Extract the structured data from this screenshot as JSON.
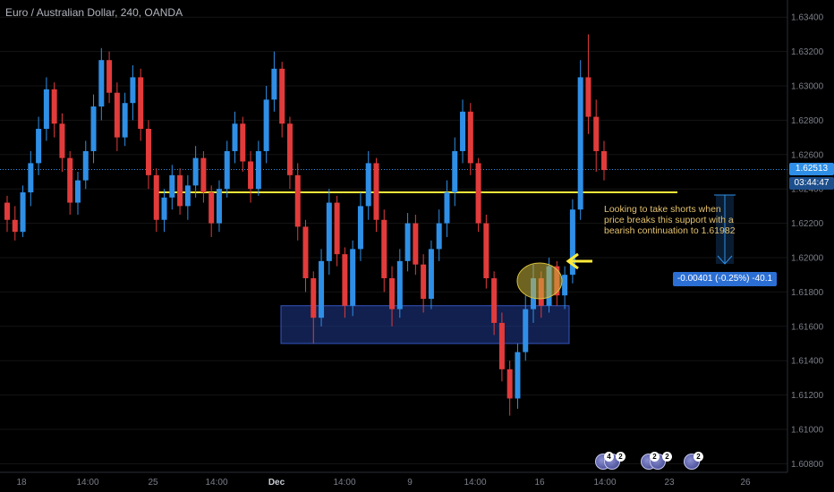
{
  "header": {
    "title": "Euro / Australian Dollar, 240, OANDA"
  },
  "price_axis": {
    "labels": [
      "1.63400",
      "1.63200",
      "1.63000",
      "1.62800",
      "1.62600",
      "1.62400",
      "1.62200",
      "1.62000",
      "1.61800",
      "1.61600",
      "1.61400",
      "1.61200",
      "1.61000",
      "1.60800"
    ],
    "current_price": "1.62513",
    "countdown": "03:44:47"
  },
  "time_axis": {
    "labels": [
      "18",
      "14:00",
      "25",
      "14:00",
      "Dec",
      "14:00",
      "9",
      "14:00",
      "16",
      "14:00",
      "23",
      "26"
    ]
  },
  "annotation": {
    "text": "Looking to take shorts when price breaks this support with a bearish continuation to 1.61982"
  },
  "measure": {
    "label": "-0.00401 (-0.25%) -40.1"
  },
  "events": [
    {
      "badge": "4",
      "badge2": "2"
    },
    {
      "badge": "2",
      "badge2": "2"
    },
    {
      "badge": "2"
    }
  ],
  "colors": {
    "up": "#2f8fe6",
    "down": "#e23b3b",
    "support_line": "#ffeb3b",
    "zone": "#1f3b8f",
    "highlight": "#c9b53a",
    "arrow": "#ffeb3b",
    "background": "#000000"
  },
  "chart_data": {
    "type": "candlestick",
    "title": "Euro / Australian Dollar, 240, OANDA",
    "ylim": [
      1.6075,
      1.635
    ],
    "support_level": 1.6238,
    "demand_zone": [
      1.615,
      1.6172
    ],
    "target": 1.61982,
    "last_price": 1.62513,
    "candles": [
      [
        1.6232,
        1.6236,
        1.6215,
        1.6222
      ],
      [
        1.6222,
        1.623,
        1.621,
        1.6215
      ],
      [
        1.6215,
        1.6242,
        1.6212,
        1.6238
      ],
      [
        1.6238,
        1.6262,
        1.623,
        1.6255
      ],
      [
        1.6255,
        1.6282,
        1.6248,
        1.6275
      ],
      [
        1.6275,
        1.6305,
        1.6268,
        1.6298
      ],
      [
        1.6298,
        1.6302,
        1.627,
        1.6278
      ],
      [
        1.6278,
        1.6284,
        1.625,
        1.6258
      ],
      [
        1.6258,
        1.6262,
        1.6225,
        1.6232
      ],
      [
        1.6232,
        1.625,
        1.6225,
        1.6245
      ],
      [
        1.6245,
        1.6268,
        1.624,
        1.6262
      ],
      [
        1.6262,
        1.6295,
        1.6255,
        1.6288
      ],
      [
        1.6288,
        1.6322,
        1.628,
        1.6315
      ],
      [
        1.6315,
        1.632,
        1.629,
        1.6296
      ],
      [
        1.6296,
        1.6302,
        1.6262,
        1.627
      ],
      [
        1.627,
        1.6296,
        1.6265,
        1.629
      ],
      [
        1.629,
        1.6312,
        1.628,
        1.6305
      ],
      [
        1.6305,
        1.631,
        1.6268,
        1.6275
      ],
      [
        1.6275,
        1.628,
        1.624,
        1.6248
      ],
      [
        1.6248,
        1.6252,
        1.6215,
        1.6222
      ],
      [
        1.6222,
        1.624,
        1.6215,
        1.6235
      ],
      [
        1.6235,
        1.6254,
        1.6228,
        1.6248
      ],
      [
        1.6248,
        1.6252,
        1.6225,
        1.623
      ],
      [
        1.623,
        1.6248,
        1.6222,
        1.6242
      ],
      [
        1.6242,
        1.6265,
        1.6235,
        1.6258
      ],
      [
        1.6258,
        1.6262,
        1.6232,
        1.6238
      ],
      [
        1.6238,
        1.6242,
        1.6212,
        1.622
      ],
      [
        1.622,
        1.6245,
        1.6215,
        1.624
      ],
      [
        1.624,
        1.6268,
        1.6235,
        1.6262
      ],
      [
        1.6262,
        1.6285,
        1.6255,
        1.6278
      ],
      [
        1.6278,
        1.6282,
        1.625,
        1.6256
      ],
      [
        1.6256,
        1.6262,
        1.6232,
        1.624
      ],
      [
        1.624,
        1.6268,
        1.6236,
        1.6262
      ],
      [
        1.6262,
        1.63,
        1.6255,
        1.6292
      ],
      [
        1.6292,
        1.632,
        1.6285,
        1.631
      ],
      [
        1.631,
        1.6314,
        1.627,
        1.6278
      ],
      [
        1.6278,
        1.6282,
        1.624,
        1.6248
      ],
      [
        1.6248,
        1.6255,
        1.621,
        1.6218
      ],
      [
        1.6218,
        1.6222,
        1.618,
        1.6188
      ],
      [
        1.6188,
        1.6192,
        1.615,
        1.6165
      ],
      [
        1.6165,
        1.6205,
        1.616,
        1.6198
      ],
      [
        1.6198,
        1.624,
        1.619,
        1.6232
      ],
      [
        1.6232,
        1.6236,
        1.6195,
        1.6202
      ],
      [
        1.6202,
        1.6206,
        1.6165,
        1.6172
      ],
      [
        1.6172,
        1.621,
        1.6166,
        1.6205
      ],
      [
        1.6205,
        1.6238,
        1.6198,
        1.623
      ],
      [
        1.623,
        1.6262,
        1.6222,
        1.6255
      ],
      [
        1.6255,
        1.6258,
        1.6215,
        1.6222
      ],
      [
        1.6222,
        1.6228,
        1.618,
        1.6188
      ],
      [
        1.6188,
        1.6195,
        1.616,
        1.617
      ],
      [
        1.617,
        1.6205,
        1.6165,
        1.6198
      ],
      [
        1.6198,
        1.6226,
        1.6192,
        1.622
      ],
      [
        1.622,
        1.6225,
        1.619,
        1.6196
      ],
      [
        1.6196,
        1.6202,
        1.6168,
        1.6176
      ],
      [
        1.6176,
        1.621,
        1.617,
        1.6205
      ],
      [
        1.6205,
        1.6228,
        1.6198,
        1.622
      ],
      [
        1.622,
        1.6245,
        1.6212,
        1.6238
      ],
      [
        1.6238,
        1.627,
        1.623,
        1.6262
      ],
      [
        1.6262,
        1.6292,
        1.6255,
        1.6285
      ],
      [
        1.6285,
        1.629,
        1.6248,
        1.6255
      ],
      [
        1.6255,
        1.6258,
        1.6215,
        1.622
      ],
      [
        1.622,
        1.6225,
        1.6182,
        1.6188
      ],
      [
        1.6188,
        1.6192,
        1.6155,
        1.6162
      ],
      [
        1.6162,
        1.6168,
        1.6128,
        1.6135
      ],
      [
        1.6135,
        1.614,
        1.6108,
        1.6118
      ],
      [
        1.6118,
        1.615,
        1.6112,
        1.6145
      ],
      [
        1.6145,
        1.6178,
        1.614,
        1.617
      ],
      [
        1.617,
        1.6196,
        1.6162,
        1.6188
      ],
      [
        1.6188,
        1.6192,
        1.6165,
        1.6172
      ],
      [
        1.6172,
        1.62,
        1.6168,
        1.6195
      ],
      [
        1.6195,
        1.6198,
        1.6172,
        1.6178
      ],
      [
        1.6178,
        1.6195,
        1.617,
        1.619
      ],
      [
        1.619,
        1.6234,
        1.6185,
        1.6228
      ],
      [
        1.6228,
        1.6315,
        1.6222,
        1.6305
      ],
      [
        1.6305,
        1.633,
        1.6272,
        1.6282
      ],
      [
        1.6282,
        1.6292,
        1.625,
        1.6262
      ],
      [
        1.6262,
        1.6268,
        1.6245,
        1.6251
      ]
    ]
  }
}
